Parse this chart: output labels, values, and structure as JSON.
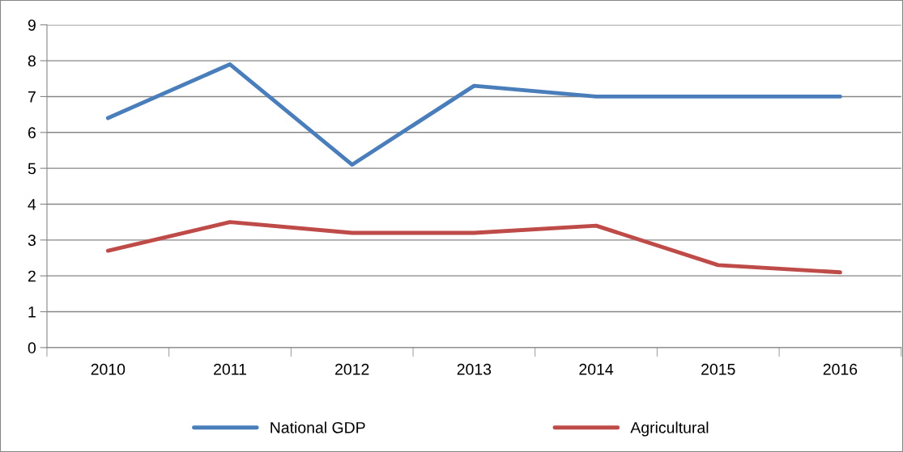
{
  "chart_data": {
    "type": "line",
    "categories": [
      "2010",
      "2011",
      "2012",
      "2013",
      "2014",
      "2015",
      "2016"
    ],
    "series": [
      {
        "name": "National GDP",
        "color": "#4a7ebb",
        "values": [
          6.4,
          7.9,
          5.1,
          7.3,
          7.0,
          7.0,
          7.0
        ]
      },
      {
        "name": "Agricultural",
        "color": "#be4b48",
        "values": [
          2.7,
          3.5,
          3.2,
          3.2,
          3.4,
          2.3,
          2.1
        ]
      }
    ],
    "ylim": [
      0,
      9
    ],
    "yticks": [
      0,
      1,
      2,
      3,
      4,
      5,
      6,
      7,
      8,
      9
    ],
    "grid": "y",
    "legend": "bottom",
    "marker": "none",
    "line_style": "solid"
  }
}
